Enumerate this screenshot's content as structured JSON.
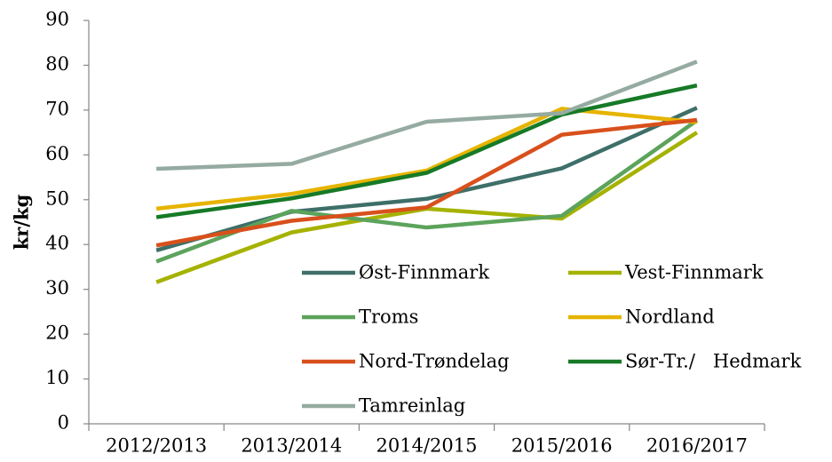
{
  "chart_data": {
    "type": "line",
    "y_label": "kr/kg",
    "categories": [
      "2012/2013",
      "2013/2014",
      "2014/2015",
      "2015/2016",
      "2016/2017"
    ],
    "ylim": [
      0,
      90
    ],
    "yticks": [
      0,
      10,
      20,
      30,
      40,
      50,
      60,
      70,
      80,
      90
    ],
    "legend": "inside-lower-center",
    "series": [
      {
        "name": "Øst-Finnmark",
        "color": "#3e6f69",
        "values": [
          38.7,
          47.3,
          50.2,
          57,
          70.5
        ]
      },
      {
        "name": "Vest-Finnmark",
        "color": "#a5b200",
        "values": [
          31.6,
          42.7,
          48,
          45.8,
          65
        ]
      },
      {
        "name": "Troms",
        "color": "#5ca35c",
        "values": [
          36.2,
          47.5,
          43.8,
          46.4,
          67.7
        ]
      },
      {
        "name": "Nordland",
        "color": "#e6b400",
        "values": [
          48,
          51.3,
          56.5,
          70.3,
          67.3
        ]
      },
      {
        "name": "Nord-Trøndelag",
        "color": "#d8501c",
        "values": [
          39.8,
          45.3,
          48.3,
          64.5,
          67.8
        ]
      },
      {
        "name": "Sør-Tr./   Hedmark",
        "color": "#167a26",
        "values": [
          46.1,
          50.3,
          56,
          69,
          75.5
        ]
      },
      {
        "name": "Tamreinlag",
        "color": "#95aba1",
        "values": [
          56.9,
          58,
          67.4,
          69.3,
          80.8
        ]
      }
    ]
  }
}
